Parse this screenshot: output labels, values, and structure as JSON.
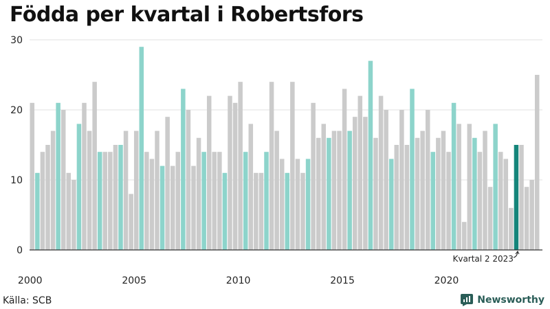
{
  "title": "Födda per kvartal i Robertsfors",
  "source": "Källa: SCB",
  "brand": "Newsworthy",
  "colors": {
    "default": "#cbcbcb",
    "highlight": "#8dd4cb",
    "latest": "#14857a",
    "grid": "#e2e2e2",
    "axis": "#333333",
    "brand": "#2a5d57"
  },
  "chart_data": {
    "type": "bar",
    "title": "Födda per kvartal i Robertsfors",
    "xlabel": "",
    "ylabel": "",
    "ylim": [
      0,
      30
    ],
    "yticks": [
      0,
      10,
      20,
      30
    ],
    "x_tick_labels": [
      "2000",
      "2005",
      "2010",
      "2015",
      "2020"
    ],
    "first_year": 2000,
    "categories": [
      "2000 K1",
      "2000 K2",
      "2000 K3",
      "2000 K4",
      "2001 K1",
      "2001 K2",
      "2001 K3",
      "2001 K4",
      "2002 K1",
      "2002 K2",
      "2002 K3",
      "2002 K4",
      "2003 K1",
      "2003 K2",
      "2003 K3",
      "2003 K4",
      "2004 K1",
      "2004 K2",
      "2004 K3",
      "2004 K4",
      "2005 K1",
      "2005 K2",
      "2005 K3",
      "2005 K4",
      "2006 K1",
      "2006 K2",
      "2006 K3",
      "2006 K4",
      "2007 K1",
      "2007 K2",
      "2007 K3",
      "2007 K4",
      "2008 K1",
      "2008 K2",
      "2008 K3",
      "2008 K4",
      "2009 K1",
      "2009 K2",
      "2009 K3",
      "2009 K4",
      "2010 K1",
      "2010 K2",
      "2010 K3",
      "2010 K4",
      "2011 K1",
      "2011 K2",
      "2011 K3",
      "2011 K4",
      "2012 K1",
      "2012 K2",
      "2012 K3",
      "2012 K4",
      "2013 K1",
      "2013 K2",
      "2013 K3",
      "2013 K4",
      "2014 K1",
      "2014 K2",
      "2014 K3",
      "2014 K4",
      "2015 K1",
      "2015 K2",
      "2015 K3",
      "2015 K4",
      "2016 K1",
      "2016 K2",
      "2016 K3",
      "2016 K4",
      "2017 K1",
      "2017 K2",
      "2017 K3",
      "2017 K4",
      "2018 K1",
      "2018 K2",
      "2018 K3",
      "2018 K4",
      "2019 K1",
      "2019 K2",
      "2019 K3",
      "2019 K4",
      "2020 K1",
      "2020 K2",
      "2020 K3",
      "2020 K4",
      "2021 K1",
      "2021 K2",
      "2021 K3",
      "2021 K4",
      "2022 K1",
      "2022 K2",
      "2022 K3",
      "2022 K4",
      "2023 K1",
      "2023 K2",
      "2023 K3",
      "2023 K4",
      "2024 K1",
      "2024 K2"
    ],
    "values": [
      21,
      11,
      14,
      15,
      17,
      21,
      20,
      11,
      10,
      18,
      21,
      17,
      24,
      14,
      14,
      14,
      15,
      15,
      17,
      8,
      17,
      29,
      14,
      13,
      17,
      12,
      19,
      12,
      14,
      23,
      20,
      12,
      16,
      14,
      22,
      14,
      14,
      11,
      22,
      21,
      24,
      14,
      18,
      11,
      11,
      14,
      24,
      17,
      13,
      11,
      24,
      13,
      11,
      13,
      21,
      16,
      18,
      16,
      17,
      17,
      23,
      17,
      19,
      22,
      19,
      27,
      16,
      22,
      20,
      13,
      15,
      20,
      15,
      23,
      16,
      17,
      20,
      14,
      16,
      17,
      14,
      21,
      18,
      4,
      18,
      16,
      14,
      17,
      9,
      18,
      14,
      13,
      6,
      15,
      15,
      9,
      10,
      25
    ],
    "highlight": [
      "default",
      "highlight",
      "default",
      "default",
      "default",
      "highlight",
      "default",
      "default",
      "default",
      "highlight",
      "default",
      "default",
      "default",
      "highlight",
      "default",
      "default",
      "default",
      "highlight",
      "default",
      "default",
      "default",
      "highlight",
      "default",
      "default",
      "default",
      "highlight",
      "default",
      "default",
      "default",
      "highlight",
      "default",
      "default",
      "default",
      "highlight",
      "default",
      "default",
      "default",
      "highlight",
      "default",
      "default",
      "default",
      "highlight",
      "default",
      "default",
      "default",
      "highlight",
      "default",
      "default",
      "default",
      "highlight",
      "default",
      "default",
      "default",
      "highlight",
      "default",
      "default",
      "default",
      "highlight",
      "default",
      "default",
      "default",
      "highlight",
      "default",
      "default",
      "default",
      "highlight",
      "default",
      "default",
      "default",
      "highlight",
      "default",
      "default",
      "default",
      "highlight",
      "default",
      "default",
      "default",
      "highlight",
      "default",
      "default",
      "default",
      "highlight",
      "default",
      "default",
      "default",
      "highlight",
      "default",
      "default",
      "default",
      "highlight",
      "default",
      "default",
      "default",
      "latest"
    ],
    "annotation": {
      "text": "Kvartal 2 2023",
      "target_index": 93
    }
  }
}
